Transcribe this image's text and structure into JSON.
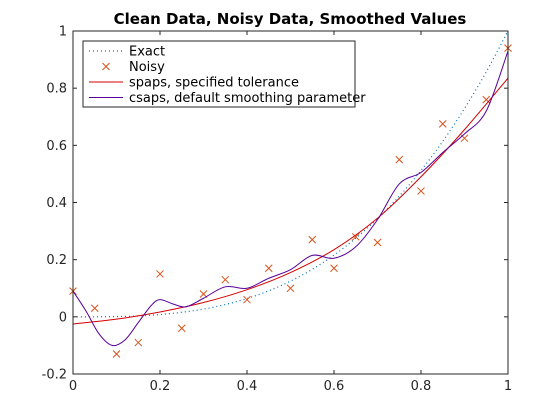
{
  "chart_data": {
    "type": "line",
    "title": "Clean Data, Noisy Data, Smoothed Values",
    "xlabel": "",
    "ylabel": "",
    "xlim": [
      0,
      1
    ],
    "ylim": [
      -0.2,
      1
    ],
    "x_ticks": [
      0,
      0.2,
      0.4,
      0.6,
      0.8,
      1
    ],
    "y_ticks": [
      -0.2,
      0,
      0.2,
      0.4,
      0.6,
      0.8,
      1
    ],
    "x_tick_labels": [
      "0",
      "0.2",
      "0.4",
      "0.6",
      "0.8",
      "1"
    ],
    "y_tick_labels": [
      "-0.2",
      "0",
      "0.2",
      "0.4",
      "0.6",
      "0.8",
      "1"
    ],
    "grid": false,
    "legend_position": "top-left",
    "series": [
      {
        "name": "Exact",
        "style": "dotted",
        "color": "#0072BD",
        "x": [
          0,
          0.05,
          0.1,
          0.15,
          0.2,
          0.25,
          0.3,
          0.35,
          0.4,
          0.45,
          0.5,
          0.55,
          0.6,
          0.65,
          0.7,
          0.75,
          0.8,
          0.85,
          0.9,
          0.95,
          1
        ],
        "y": [
          0.0,
          0.0,
          0.001,
          0.003,
          0.008,
          0.016,
          0.027,
          0.043,
          0.064,
          0.091,
          0.125,
          0.166,
          0.216,
          0.275,
          0.343,
          0.422,
          0.512,
          0.614,
          0.729,
          0.857,
          1.0
        ]
      },
      {
        "name": "Noisy",
        "style": "markers",
        "marker": "x",
        "color": "#D95319",
        "x": [
          0,
          0.05,
          0.1,
          0.15,
          0.2,
          0.25,
          0.3,
          0.35,
          0.4,
          0.45,
          0.5,
          0.55,
          0.6,
          0.65,
          0.7,
          0.75,
          0.8,
          0.85,
          0.9,
          0.95,
          1
        ],
        "y": [
          0.09,
          0.03,
          -0.13,
          -0.09,
          0.15,
          -0.04,
          0.08,
          0.13,
          0.06,
          0.17,
          0.1,
          0.27,
          0.17,
          0.28,
          0.26,
          0.55,
          0.44,
          0.675,
          0.625,
          0.76,
          0.94
        ]
      },
      {
        "name": "spaps, specified tolerance",
        "style": "solid",
        "color": "#D40000",
        "x": [
          0,
          0.1,
          0.2,
          0.3,
          0.4,
          0.5,
          0.6,
          0.7,
          0.8,
          0.9,
          1
        ],
        "y": [
          -0.025,
          -0.008,
          0.017,
          0.05,
          0.095,
          0.155,
          0.235,
          0.345,
          0.49,
          0.655,
          0.835
        ]
      },
      {
        "name": "csaps, default smoothing parameter",
        "style": "solid",
        "color": "#5A0099",
        "x": [
          0,
          0.03,
          0.06,
          0.09,
          0.12,
          0.15,
          0.18,
          0.2,
          0.23,
          0.26,
          0.3,
          0.35,
          0.4,
          0.45,
          0.5,
          0.55,
          0.6,
          0.65,
          0.7,
          0.75,
          0.8,
          0.85,
          0.9,
          0.95,
          1
        ],
        "y": [
          0.09,
          0.02,
          -0.06,
          -0.1,
          -0.08,
          -0.02,
          0.04,
          0.06,
          0.045,
          0.035,
          0.065,
          0.105,
          0.1,
          0.135,
          0.165,
          0.215,
          0.205,
          0.245,
          0.34,
          0.465,
          0.505,
          0.575,
          0.64,
          0.72,
          0.93
        ]
      }
    ]
  }
}
